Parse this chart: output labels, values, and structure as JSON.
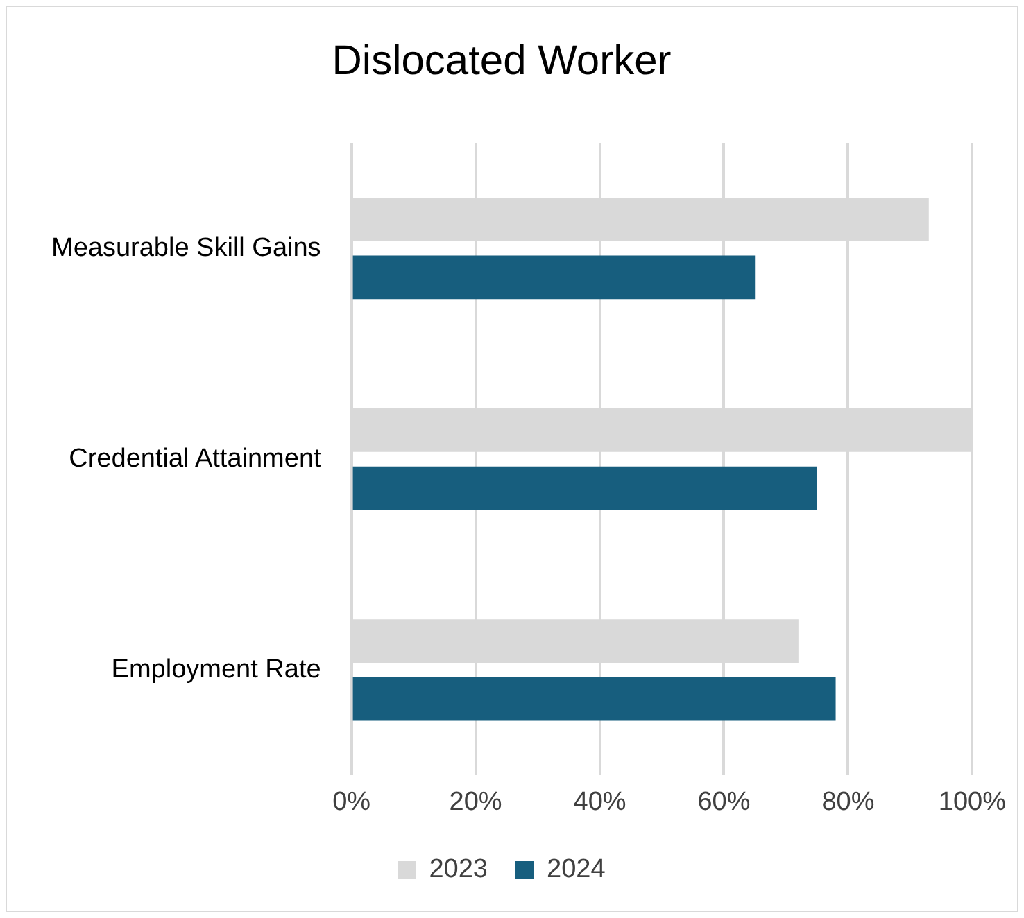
{
  "chart_data": {
    "type": "bar",
    "orientation": "horizontal",
    "title": "Dislocated Worker",
    "categories": [
      "Measurable Skill Gains",
      "Credential Attainment",
      "Employment Rate"
    ],
    "series": [
      {
        "name": "2023",
        "color": "#d9d9d9",
        "values": [
          93,
          100,
          72
        ]
      },
      {
        "name": "2024",
        "color": "#175e7e",
        "values": [
          65,
          75,
          78
        ]
      }
    ],
    "xlim": [
      0,
      100
    ],
    "xticks": [
      {
        "value": 0,
        "label": "0%"
      },
      {
        "value": 20,
        "label": "20%"
      },
      {
        "value": 40,
        "label": "40%"
      },
      {
        "value": 60,
        "label": "60%"
      },
      {
        "value": 80,
        "label": "80%"
      },
      {
        "value": 100,
        "label": "100%"
      }
    ],
    "grid": "x",
    "legend": "bottom"
  }
}
